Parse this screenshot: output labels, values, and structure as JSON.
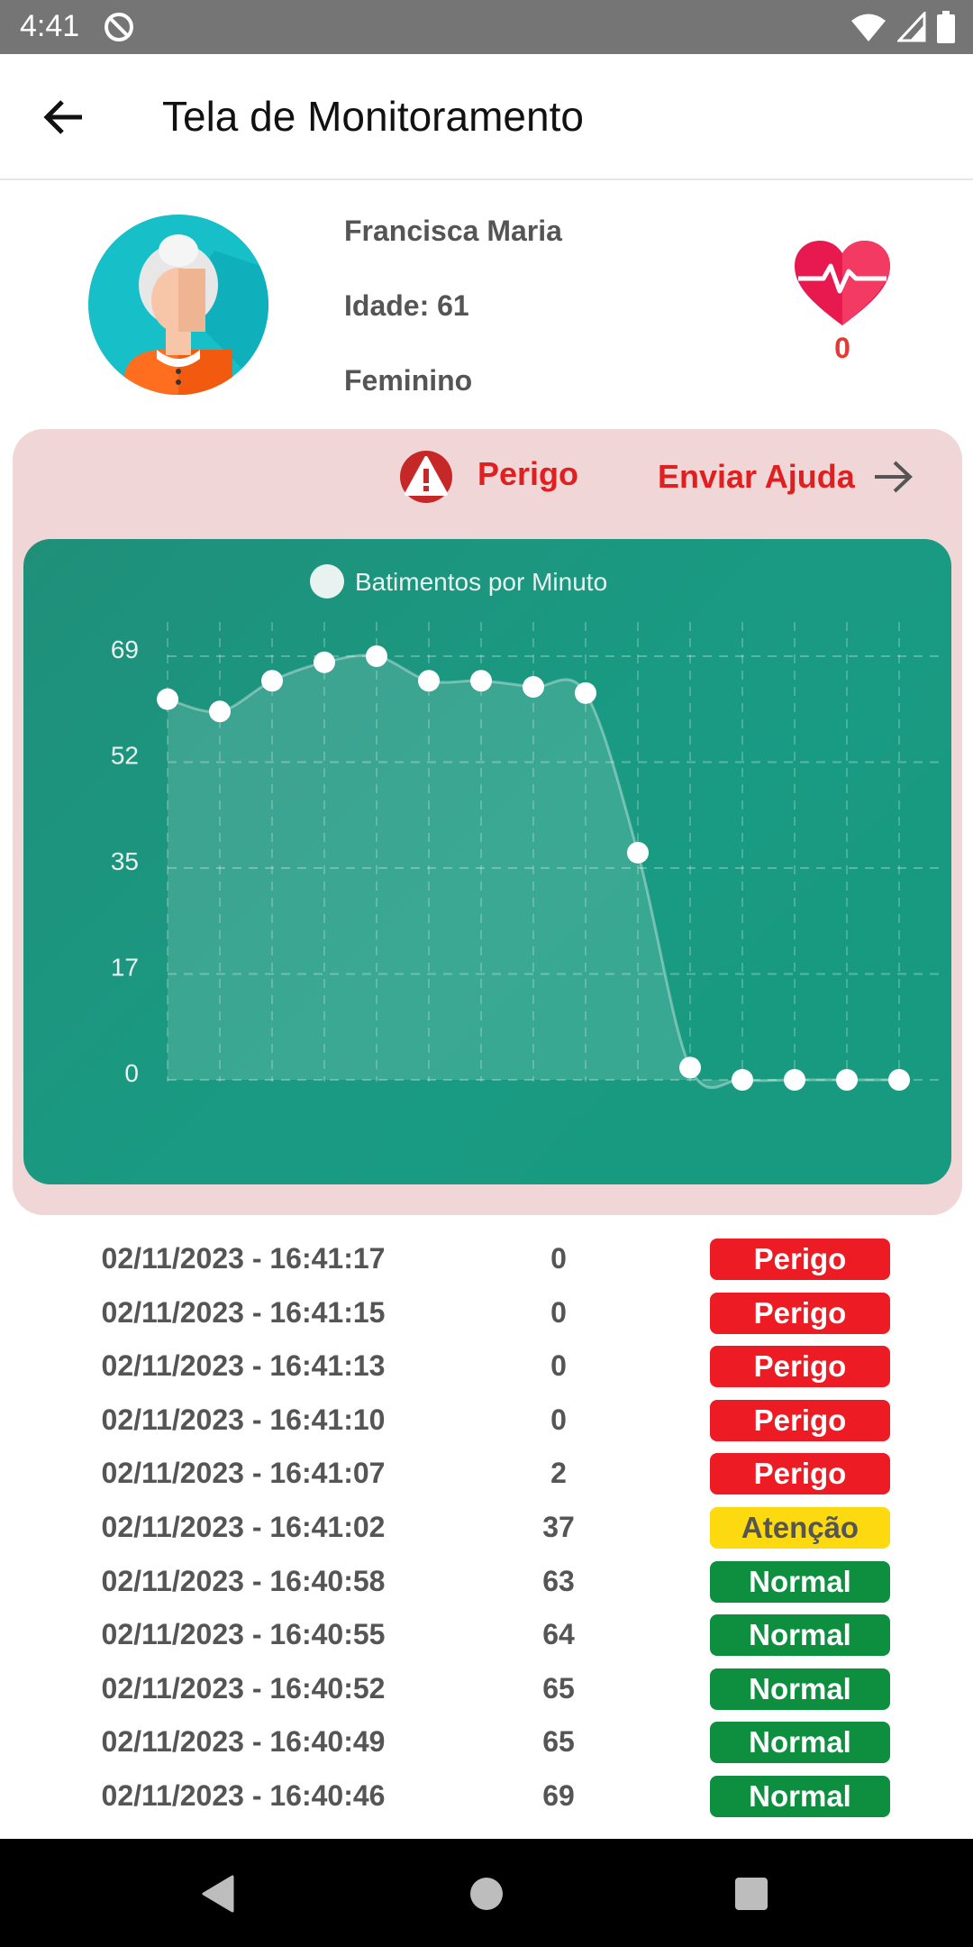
{
  "status_bar": {
    "time": "4:41"
  },
  "app_bar": {
    "title": "Tela de Monitoramento"
  },
  "profile": {
    "name": "Francisca Maria",
    "age": "Idade: 61",
    "gender": "Feminino",
    "heart_count": "0"
  },
  "alert": {
    "status_label": "Perigo",
    "help_label": "Enviar Ajuda"
  },
  "chart_data": {
    "type": "line",
    "legend": "Batimentos por Minuto",
    "y_ticks": [
      "69",
      "52",
      "35",
      "17",
      "0"
    ],
    "ylim": [
      0,
      69
    ],
    "grid": true,
    "values": [
      62,
      60,
      65,
      68,
      69,
      65,
      65,
      64,
      63,
      37,
      2,
      0,
      0,
      0,
      0
    ]
  },
  "readings": [
    {
      "time": "02/11/2023 - 16:41:17",
      "value": "0",
      "status": "Perigo",
      "level": "danger"
    },
    {
      "time": "02/11/2023 - 16:41:15",
      "value": "0",
      "status": "Perigo",
      "level": "danger"
    },
    {
      "time": "02/11/2023 - 16:41:13",
      "value": "0",
      "status": "Perigo",
      "level": "danger"
    },
    {
      "time": "02/11/2023 - 16:41:10",
      "value": "0",
      "status": "Perigo",
      "level": "danger"
    },
    {
      "time": "02/11/2023 - 16:41:07",
      "value": "2",
      "status": "Perigo",
      "level": "danger"
    },
    {
      "time": "02/11/2023 - 16:41:02",
      "value": "37",
      "status": "Atenção",
      "level": "warning"
    },
    {
      "time": "02/11/2023 - 16:40:58",
      "value": "63",
      "status": "Normal",
      "level": "normal"
    },
    {
      "time": "02/11/2023 - 16:40:55",
      "value": "64",
      "status": "Normal",
      "level": "normal"
    },
    {
      "time": "02/11/2023 - 16:40:52",
      "value": "65",
      "status": "Normal",
      "level": "normal"
    },
    {
      "time": "02/11/2023 - 16:40:49",
      "value": "65",
      "status": "Normal",
      "level": "normal"
    },
    {
      "time": "02/11/2023 - 16:40:46",
      "value": "69",
      "status": "Normal",
      "level": "normal"
    }
  ],
  "colors": {
    "danger": "#ed1c24",
    "warning": "#fdd90f",
    "normal": "#0d8f3f",
    "accent_red": "#e02020",
    "chart_bg": "#1a9a82",
    "panel_bg": "#f0d6d6"
  },
  "icons": {
    "back": "arrow-left-icon",
    "heart": "heartbeat-icon",
    "danger": "warning-triangle-icon",
    "help": "arrow-right-icon"
  }
}
